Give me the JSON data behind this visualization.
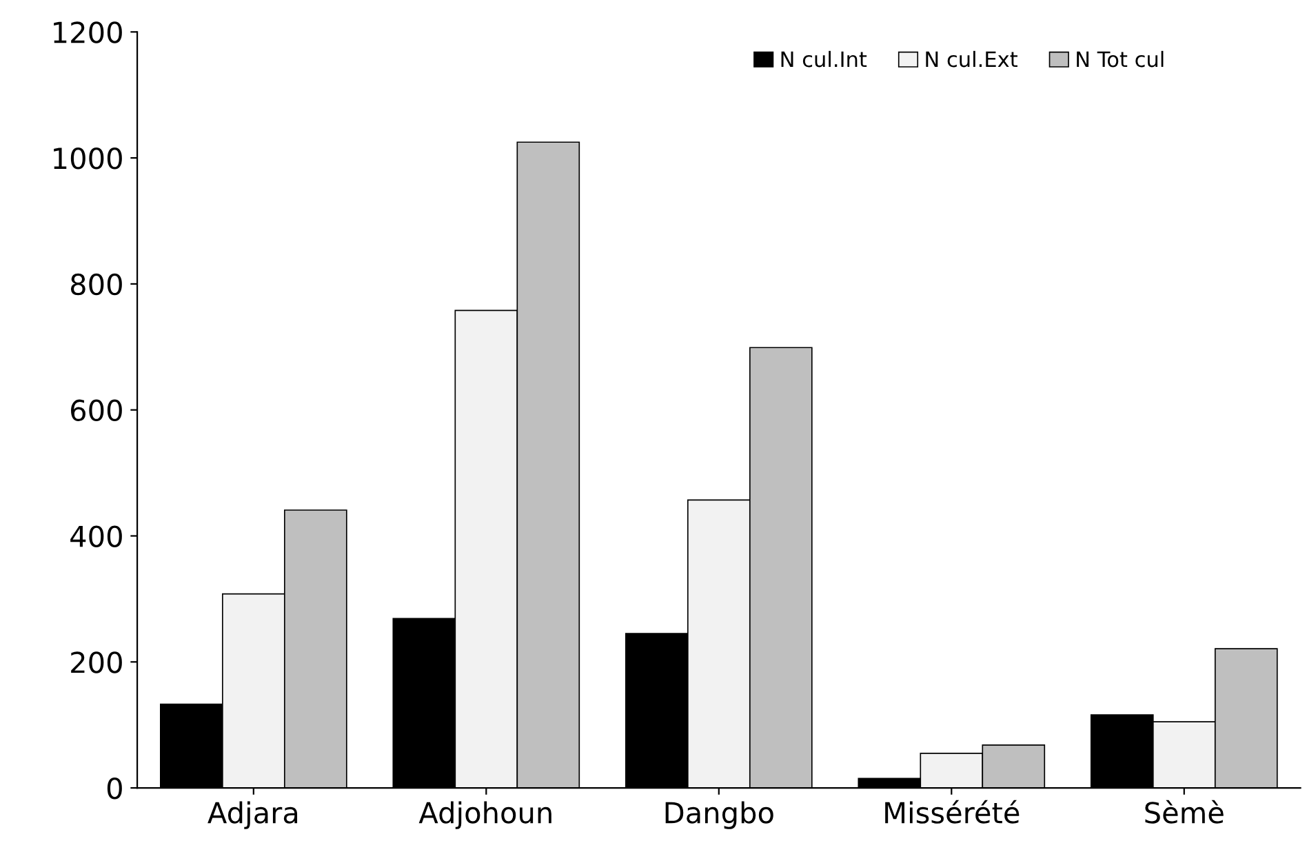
{
  "chart_data": {
    "type": "bar",
    "categories": [
      "Adjara",
      "Adjohoun",
      "Dangbo",
      "Missérété",
      "Sèmè"
    ],
    "series": [
      {
        "name": "N cul.Int",
        "color": "#000000",
        "values": [
          133,
          269,
          245,
          15,
          116
        ]
      },
      {
        "name": "N cul.Ext",
        "color": "#f2f2f2",
        "values": [
          308,
          758,
          457,
          55,
          105
        ]
      },
      {
        "name": "N Tot cul",
        "color": "#bfbfbf",
        "values": [
          441,
          1025,
          699,
          68,
          221
        ]
      }
    ],
    "ylim": [
      0,
      1200
    ],
    "yticks": [
      0,
      200,
      400,
      600,
      800,
      1000,
      1200
    ],
    "grid": false,
    "legend": "top right"
  }
}
